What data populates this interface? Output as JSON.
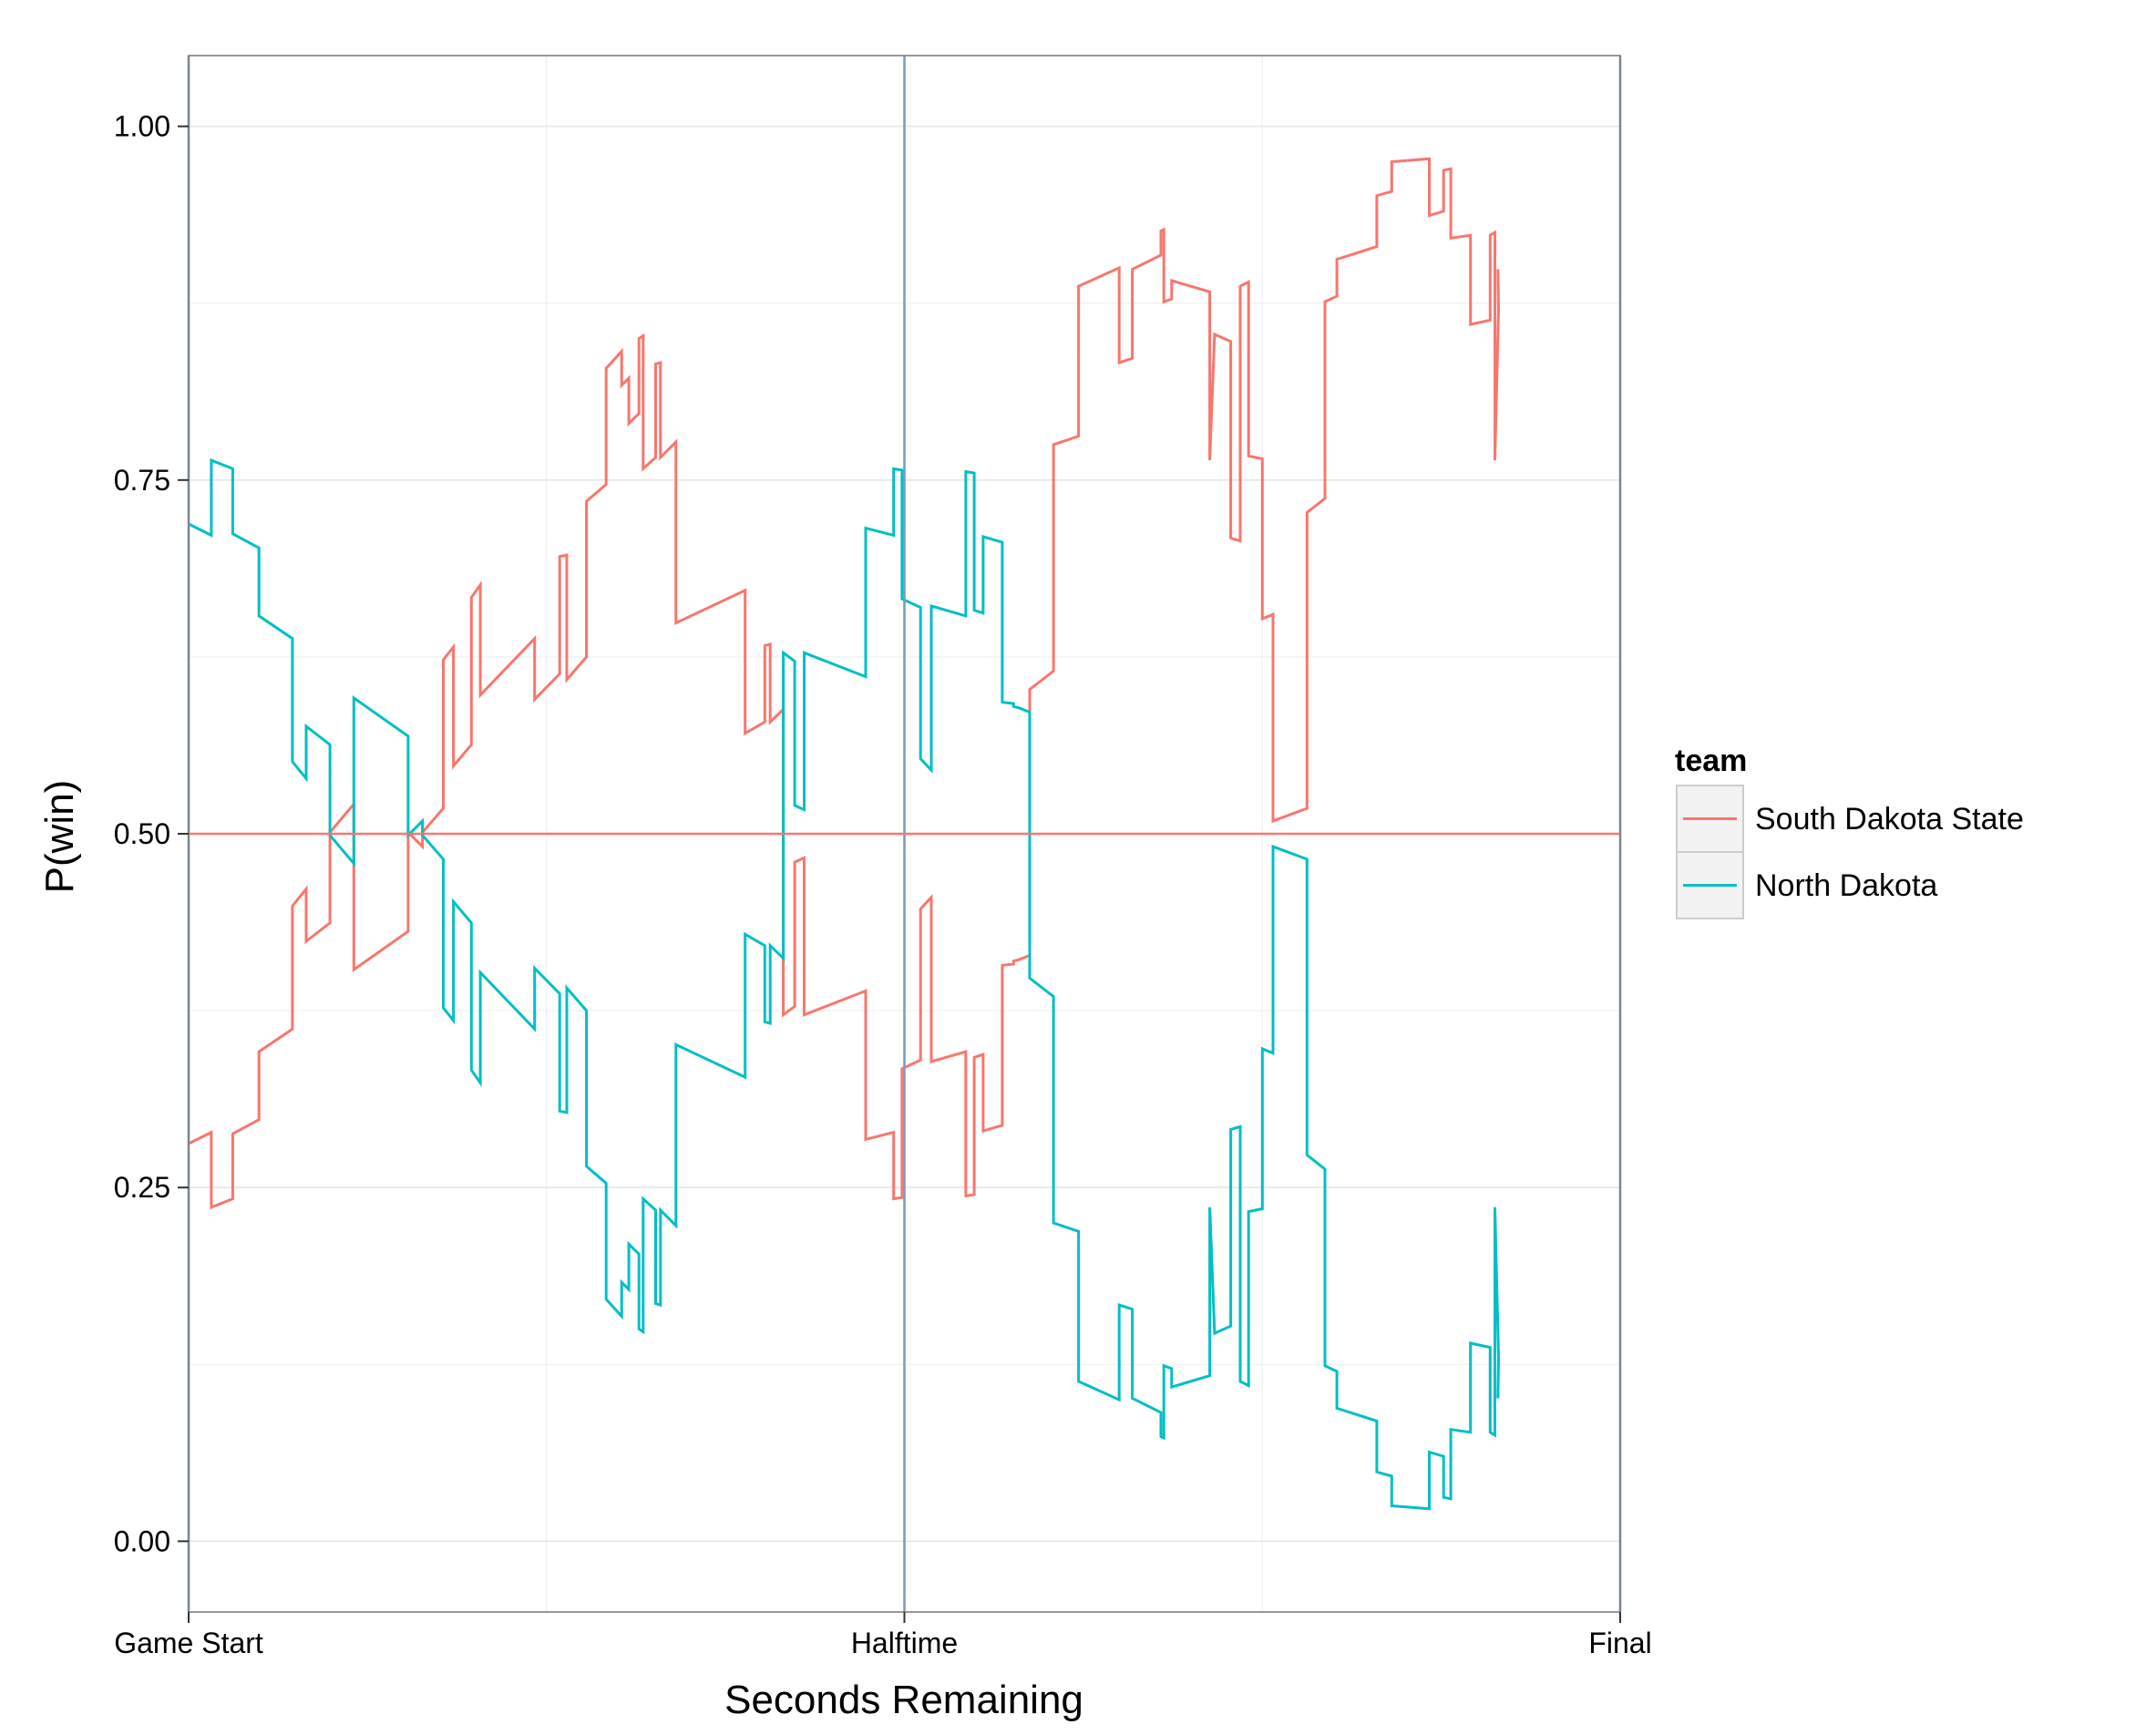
{
  "chart_data": {
    "type": "line",
    "title": "",
    "xlabel": "Seconds Remaining",
    "ylabel": "P(win)",
    "xlim": [
      2400,
      0
    ],
    "ylim": [
      -0.05,
      1.05
    ],
    "x_ticks": [
      {
        "value": 2400,
        "label": "Game Start"
      },
      {
        "value": 1200,
        "label": "Halftime"
      },
      {
        "value": 0,
        "label": "Final"
      }
    ],
    "y_ticks": [
      {
        "value": 0,
        "label": "0.00"
      },
      {
        "value": 0.25,
        "label": "0.25"
      },
      {
        "value": 0.5,
        "label": "0.50"
      },
      {
        "value": 0.75,
        "label": "0.75"
      },
      {
        "value": 1,
        "label": "1.00"
      }
    ],
    "vlines": [
      2400,
      1200,
      0
    ],
    "hline": 0.5,
    "grid": true,
    "legend": {
      "title": "team",
      "position": "right"
    },
    "colors": {
      "South Dakota State": "#F8766D",
      "North Dakota": "#00BFC4",
      "vline": "#7A9CC0",
      "hline": "#F8766D"
    },
    "series": [
      {
        "name": "South Dakota State",
        "color": "#F8766D",
        "points": [
          [
            2400,
            0.281
          ],
          [
            2362,
            0.289
          ],
          [
            2362,
            0.236
          ],
          [
            2326,
            0.242
          ],
          [
            2326,
            0.288
          ],
          [
            2282,
            0.298
          ],
          [
            2282,
            0.346
          ],
          [
            2226,
            0.362
          ],
          [
            2226,
            0.449
          ],
          [
            2203,
            0.461
          ],
          [
            2203,
            0.424
          ],
          [
            2163,
            0.437
          ],
          [
            2163,
            0.501
          ],
          [
            2123,
            0.521
          ],
          [
            2123,
            0.404
          ],
          [
            2032,
            0.431
          ],
          [
            2032,
            0.501
          ],
          [
            2008,
            0.491
          ],
          [
            2008,
            0.501
          ],
          [
            1973,
            0.518
          ],
          [
            1973,
            0.623
          ],
          [
            1956,
            0.632
          ],
          [
            1956,
            0.548
          ],
          [
            1926,
            0.563
          ],
          [
            1926,
            0.667
          ],
          [
            1911,
            0.676
          ],
          [
            1911,
            0.598
          ],
          [
            1820,
            0.638
          ],
          [
            1820,
            0.595
          ],
          [
            1778,
            0.613
          ],
          [
            1778,
            0.696
          ],
          [
            1766,
            0.697
          ],
          [
            1766,
            0.609
          ],
          [
            1733,
            0.625
          ],
          [
            1733,
            0.735
          ],
          [
            1700,
            0.747
          ],
          [
            1700,
            0.829
          ],
          [
            1674,
            0.841
          ],
          [
            1674,
            0.817
          ],
          [
            1662,
            0.822
          ],
          [
            1662,
            0.79
          ],
          [
            1645,
            0.797
          ],
          [
            1645,
            0.85
          ],
          [
            1638,
            0.852
          ],
          [
            1638,
            0.758
          ],
          [
            1617,
            0.766
          ],
          [
            1617,
            0.832
          ],
          [
            1609,
            0.833
          ],
          [
            1609,
            0.766
          ],
          [
            1583,
            0.777
          ],
          [
            1583,
            0.649
          ],
          [
            1467,
            0.672
          ],
          [
            1467,
            0.571
          ],
          [
            1434,
            0.579
          ],
          [
            1434,
            0.633
          ],
          [
            1425,
            0.634
          ],
          [
            1425,
            0.579
          ],
          [
            1403,
            0.588
          ],
          [
            1403,
            0.372
          ],
          [
            1384,
            0.378
          ],
          [
            1384,
            0.48
          ],
          [
            1368,
            0.483
          ],
          [
            1368,
            0.372
          ],
          [
            1265,
            0.389
          ],
          [
            1265,
            0.284
          ],
          [
            1218,
            0.289
          ],
          [
            1218,
            0.242
          ],
          [
            1204,
            0.243
          ],
          [
            1204,
            0.334
          ],
          [
            1173,
            0.34
          ],
          [
            1173,
            0.447
          ],
          [
            1155,
            0.455
          ],
          [
            1155,
            0.339
          ],
          [
            1097,
            0.346
          ],
          [
            1097,
            0.244
          ],
          [
            1083,
            0.245
          ],
          [
            1083,
            0.342
          ],
          [
            1068,
            0.344
          ],
          [
            1068,
            0.29
          ],
          [
            1036,
            0.294
          ],
          [
            1036,
            0.407
          ],
          [
            1017,
            0.408
          ],
          [
            1017,
            0.41
          ],
          [
            1008,
            0.411
          ],
          [
            990,
            0.414
          ],
          [
            990,
            0.602
          ],
          [
            950,
            0.615
          ],
          [
            950,
            0.775
          ],
          [
            908,
            0.781
          ],
          [
            908,
            0.887
          ],
          [
            840,
            0.9
          ],
          [
            840,
            0.833
          ],
          [
            818,
            0.836
          ],
          [
            818,
            0.899
          ],
          [
            770,
            0.909
          ],
          [
            770,
            0.926
          ],
          [
            765,
            0.927
          ],
          [
            765,
            0.876
          ],
          [
            752,
            0.878
          ],
          [
            752,
            0.891
          ],
          [
            688,
            0.883
          ],
          [
            688,
            0.764
          ],
          [
            680,
            0.853
          ],
          [
            653,
            0.848
          ],
          [
            653,
            0.709
          ],
          [
            637,
            0.707
          ],
          [
            637,
            0.887
          ],
          [
            623,
            0.89
          ],
          [
            623,
            0.767
          ],
          [
            600,
            0.765
          ],
          [
            600,
            0.652
          ],
          [
            582,
            0.655
          ],
          [
            582,
            0.509
          ],
          [
            525,
            0.518
          ],
          [
            525,
            0.727
          ],
          [
            495,
            0.737
          ],
          [
            495,
            0.876
          ],
          [
            475,
            0.88
          ],
          [
            475,
            0.906
          ],
          [
            408,
            0.915
          ],
          [
            408,
            0.951
          ],
          [
            383,
            0.954
          ],
          [
            383,
            0.975
          ],
          [
            320,
            0.977
          ],
          [
            320,
            0.937
          ],
          [
            296,
            0.94
          ],
          [
            296,
            0.969
          ],
          [
            284,
            0.97
          ],
          [
            284,
            0.921
          ],
          [
            251,
            0.923
          ],
          [
            251,
            0.86
          ],
          [
            218,
            0.863
          ],
          [
            218,
            0.923
          ],
          [
            210,
            0.925
          ],
          [
            210,
            0.764
          ],
          [
            204,
            0.87
          ],
          [
            205,
            0.899
          ]
        ]
      },
      {
        "name": "North Dakota",
        "color": "#00BFC4",
        "points": [
          [
            2400,
            0.719
          ],
          [
            2362,
            0.711
          ],
          [
            2362,
            0.764
          ],
          [
            2326,
            0.758
          ],
          [
            2326,
            0.712
          ],
          [
            2282,
            0.702
          ],
          [
            2282,
            0.654
          ],
          [
            2226,
            0.638
          ],
          [
            2226,
            0.551
          ],
          [
            2203,
            0.539
          ],
          [
            2203,
            0.576
          ],
          [
            2163,
            0.563
          ],
          [
            2163,
            0.499
          ],
          [
            2123,
            0.479
          ],
          [
            2123,
            0.596
          ],
          [
            2032,
            0.569
          ],
          [
            2032,
            0.499
          ],
          [
            2008,
            0.509
          ],
          [
            2008,
            0.499
          ],
          [
            1973,
            0.482
          ],
          [
            1973,
            0.377
          ],
          [
            1956,
            0.368
          ],
          [
            1956,
            0.452
          ],
          [
            1926,
            0.437
          ],
          [
            1926,
            0.333
          ],
          [
            1911,
            0.324
          ],
          [
            1911,
            0.402
          ],
          [
            1820,
            0.362
          ],
          [
            1820,
            0.405
          ],
          [
            1778,
            0.387
          ],
          [
            1778,
            0.304
          ],
          [
            1766,
            0.303
          ],
          [
            1766,
            0.391
          ],
          [
            1733,
            0.375
          ],
          [
            1733,
            0.265
          ],
          [
            1700,
            0.253
          ],
          [
            1700,
            0.171
          ],
          [
            1674,
            0.159
          ],
          [
            1674,
            0.183
          ],
          [
            1662,
            0.178
          ],
          [
            1662,
            0.21
          ],
          [
            1645,
            0.203
          ],
          [
            1645,
            0.15
          ],
          [
            1638,
            0.148
          ],
          [
            1638,
            0.242
          ],
          [
            1617,
            0.234
          ],
          [
            1617,
            0.168
          ],
          [
            1609,
            0.167
          ],
          [
            1609,
            0.234
          ],
          [
            1583,
            0.223
          ],
          [
            1583,
            0.351
          ],
          [
            1467,
            0.328
          ],
          [
            1467,
            0.429
          ],
          [
            1434,
            0.421
          ],
          [
            1434,
            0.367
          ],
          [
            1425,
            0.366
          ],
          [
            1425,
            0.421
          ],
          [
            1403,
            0.412
          ],
          [
            1403,
            0.628
          ],
          [
            1384,
            0.622
          ],
          [
            1384,
            0.52
          ],
          [
            1368,
            0.517
          ],
          [
            1368,
            0.628
          ],
          [
            1265,
            0.611
          ],
          [
            1265,
            0.716
          ],
          [
            1218,
            0.711
          ],
          [
            1218,
            0.758
          ],
          [
            1204,
            0.757
          ],
          [
            1204,
            0.666
          ],
          [
            1173,
            0.66
          ],
          [
            1173,
            0.553
          ],
          [
            1155,
            0.545
          ],
          [
            1155,
            0.661
          ],
          [
            1097,
            0.654
          ],
          [
            1097,
            0.756
          ],
          [
            1083,
            0.755
          ],
          [
            1083,
            0.658
          ],
          [
            1068,
            0.656
          ],
          [
            1068,
            0.71
          ],
          [
            1036,
            0.706
          ],
          [
            1036,
            0.593
          ],
          [
            1017,
            0.592
          ],
          [
            1017,
            0.59
          ],
          [
            1008,
            0.589
          ],
          [
            990,
            0.586
          ],
          [
            990,
            0.398
          ],
          [
            950,
            0.385
          ],
          [
            950,
            0.225
          ],
          [
            908,
            0.219
          ],
          [
            908,
            0.113
          ],
          [
            840,
            0.1
          ],
          [
            840,
            0.167
          ],
          [
            818,
            0.164
          ],
          [
            818,
            0.101
          ],
          [
            770,
            0.091
          ],
          [
            770,
            0.074
          ],
          [
            765,
            0.073
          ],
          [
            765,
            0.124
          ],
          [
            752,
            0.122
          ],
          [
            752,
            0.109
          ],
          [
            688,
            0.117
          ],
          [
            688,
            0.236
          ],
          [
            680,
            0.147
          ],
          [
            653,
            0.152
          ],
          [
            653,
            0.291
          ],
          [
            637,
            0.293
          ],
          [
            637,
            0.113
          ],
          [
            623,
            0.11
          ],
          [
            623,
            0.233
          ],
          [
            600,
            0.235
          ],
          [
            600,
            0.348
          ],
          [
            582,
            0.345
          ],
          [
            582,
            0.491
          ],
          [
            525,
            0.482
          ],
          [
            525,
            0.273
          ],
          [
            495,
            0.263
          ],
          [
            495,
            0.124
          ],
          [
            475,
            0.12
          ],
          [
            475,
            0.094
          ],
          [
            408,
            0.085
          ],
          [
            408,
            0.049
          ],
          [
            383,
            0.046
          ],
          [
            383,
            0.025
          ],
          [
            320,
            0.023
          ],
          [
            320,
            0.063
          ],
          [
            296,
            0.06
          ],
          [
            296,
            0.031
          ],
          [
            284,
            0.03
          ],
          [
            284,
            0.079
          ],
          [
            251,
            0.077
          ],
          [
            251,
            0.14
          ],
          [
            218,
            0.137
          ],
          [
            218,
            0.077
          ],
          [
            210,
            0.075
          ],
          [
            210,
            0.236
          ],
          [
            204,
            0.13
          ],
          [
            205,
            0.101
          ]
        ]
      }
    ]
  }
}
